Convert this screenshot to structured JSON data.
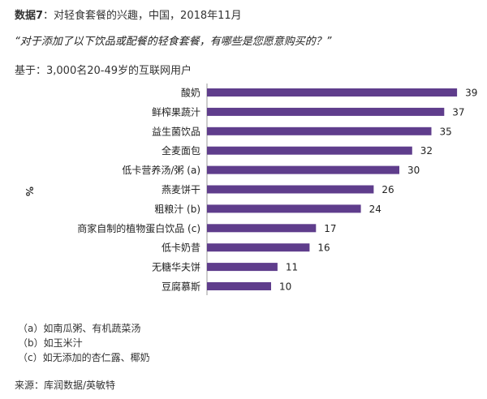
{
  "header": {
    "figure_label": "数据7",
    "title_rest": "：对轻食套餐的兴趣，中国，2018年11月",
    "question": "“对于添加了以下饮品或配餐的轻食套餐，有哪些是您愿意购买的？”",
    "base": "基于：3,000名20-49岁的互联网用户"
  },
  "chart_data": {
    "type": "bar",
    "orientation": "horizontal",
    "ylabel": "%",
    "categories": [
      "酸奶",
      "鲜榨果蔬汁",
      "益生菌饮品",
      "全麦面包",
      "低卡营养汤/粥 (a)",
      "燕麦饼干",
      "粗粮汁 (b)",
      "商家自制的植物蛋白饮品 (c)",
      "低卡奶昔",
      "无糖华夫饼",
      "豆腐慕斯"
    ],
    "values": [
      39,
      37,
      35,
      32,
      30,
      26,
      24,
      17,
      16,
      11,
      10
    ],
    "xlim": [
      0,
      42
    ],
    "grid": false,
    "bar_color": "#5f3d8c"
  },
  "notes": [
    "（a）如南瓜粥、有机蔬菜汤",
    "（b）如玉米汁",
    "（c）如无添加的杏仁露、椰奶"
  ],
  "source": "来源：库润数据/英敏特"
}
